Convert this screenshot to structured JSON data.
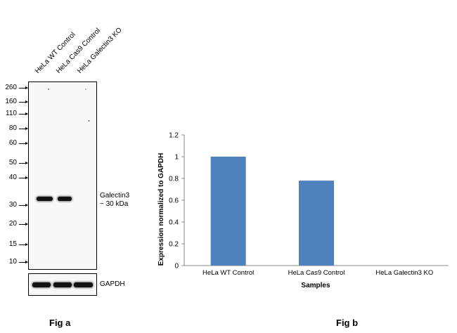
{
  "fig_a": {
    "caption": "Fig a",
    "lanes": [
      "HeLa WT Control",
      "HeLa Cas9 Control",
      "HeLa Galectin3 KO"
    ],
    "markers": [
      "260",
      "160",
      "110",
      "80",
      "60",
      "50",
      "40",
      "30",
      "20",
      "15",
      "10"
    ],
    "target_label_line1": "Galectin3",
    "target_label_line2": "~ 30 kDa",
    "loading_control_label": "GAPDH"
  },
  "fig_b": {
    "caption": "Fig b"
  },
  "chart_data": {
    "type": "bar",
    "categories": [
      "HeLa WT Control",
      "HeLa Cas9 Control",
      "HeLa Galectin3 KO"
    ],
    "values": [
      1.0,
      0.78,
      0.0
    ],
    "xlabel": "Samples",
    "ylabel": "Expression  normalized to GAPDH",
    "ylim": [
      0,
      1.2
    ],
    "yticks": [
      "0",
      "0.2",
      "0.4",
      "0.6",
      "0.8",
      "1",
      "1.2"
    ],
    "bar_color": "#4f81bd",
    "grid": false,
    "legend": "none"
  }
}
